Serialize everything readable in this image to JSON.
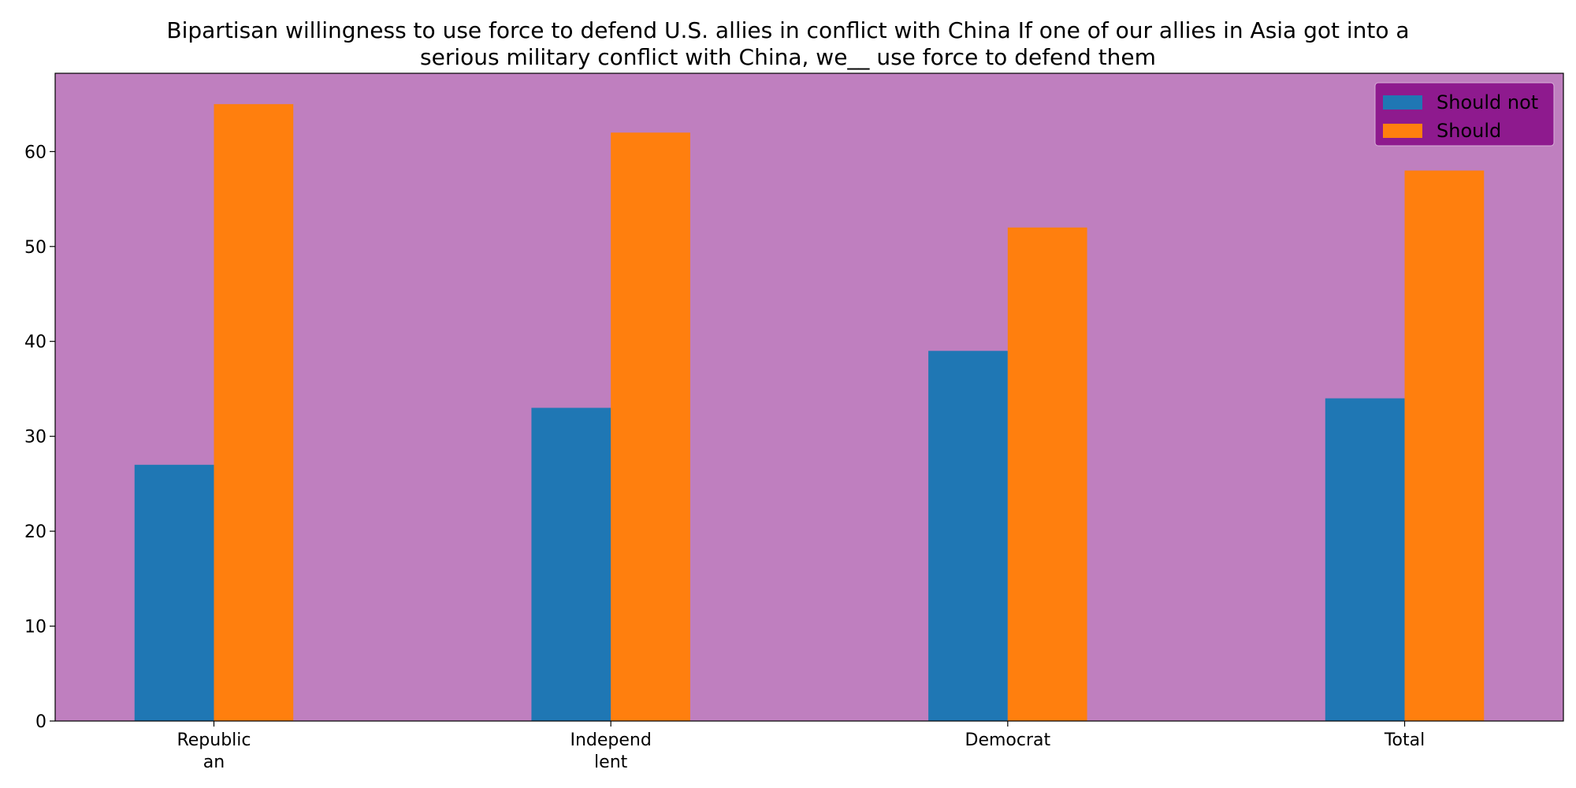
{
  "chart_data": {
    "type": "bar",
    "title_lines": [
      "Bipartisan willingness to use force to defend U.S. allies in conflict with China If one of our allies in Asia got into a",
      "serious military conflict with China, we__ use force to defend them"
    ],
    "categories": [
      [
        "Republic",
        "an"
      ],
      [
        "Independ",
        "lent"
      ],
      [
        "Democrat"
      ],
      [
        "Total"
      ]
    ],
    "series": [
      {
        "name": "Should not",
        "values": [
          27,
          33,
          39,
          34
        ],
        "color": "#1f77b4"
      },
      {
        "name": "Should",
        "values": [
          65,
          62,
          52,
          58
        ],
        "color": "#ff7f0e"
      }
    ],
    "ylim": [
      0,
      68.25
    ],
    "yticks": [
      0,
      10,
      20,
      30,
      40,
      50,
      60
    ],
    "xlabel": "",
    "ylabel": "",
    "grid": false,
    "legend_position": "top-right",
    "plot_background": "#bf7fbf",
    "legend_background": "#8e1a8e"
  }
}
